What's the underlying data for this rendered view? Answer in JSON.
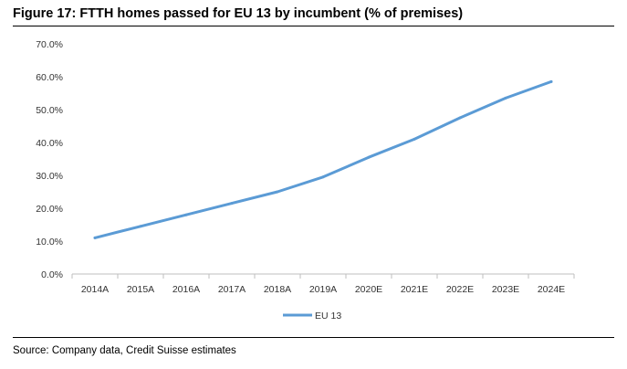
{
  "header": {
    "title": "Figure 17: FTTH homes passed for EU 13 by incumbent (% of premises)"
  },
  "footer": {
    "source": "Source: Company data, Credit Suisse estimates"
  },
  "colors": {
    "series": "#5b9bd5",
    "axis": "#bfbfbf"
  },
  "chart_data": {
    "type": "line",
    "title": "Figure 17: FTTH homes passed for EU 13 by incumbent (% of premises)",
    "xlabel": "",
    "ylabel": "",
    "categories": [
      "2014A",
      "2015A",
      "2016A",
      "2017A",
      "2018A",
      "2019A",
      "2020E",
      "2021E",
      "2022E",
      "2023E",
      "2024E"
    ],
    "series": [
      {
        "name": "EU 13",
        "values": [
          11.0,
          14.5,
          18.0,
          21.5,
          25.0,
          29.5,
          35.5,
          41.0,
          47.5,
          53.5,
          58.5
        ]
      }
    ],
    "ylim": [
      0,
      70
    ],
    "yticks": [
      "0.0%",
      "10.0%",
      "20.0%",
      "30.0%",
      "40.0%",
      "50.0%",
      "60.0%",
      "70.0%"
    ],
    "grid": false,
    "legend": "bottom"
  }
}
